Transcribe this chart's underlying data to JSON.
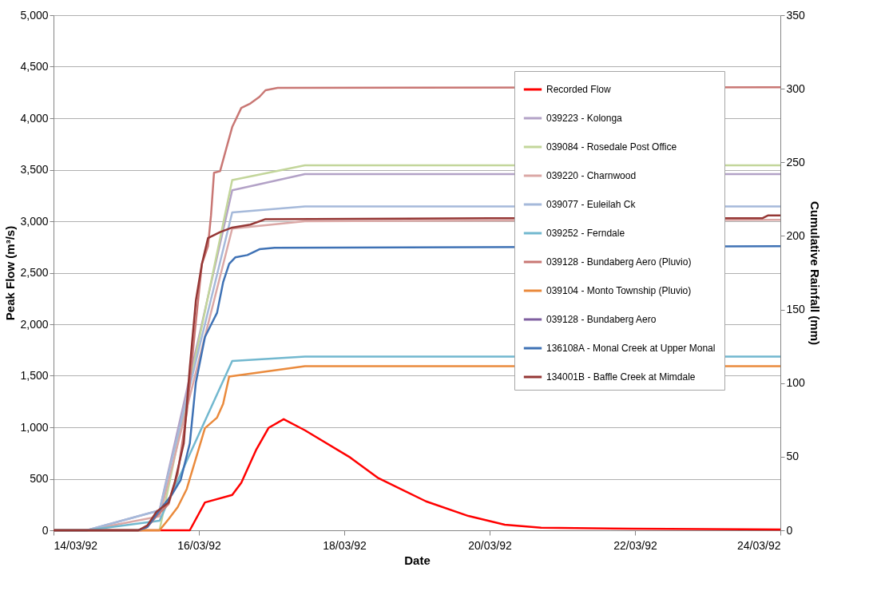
{
  "chart_data": {
    "type": "line",
    "xlabel": "Date",
    "ylabel": "Peak Flow (m³/s)",
    "y2label": "Cumulative Rainfall (mm)",
    "xlim": [
      "1992-03-14T00:00",
      "1992-03-24T00:00"
    ],
    "xticks": [
      {
        "value": "1992-03-14T00:00",
        "label": "14/03/92"
      },
      {
        "value": "1992-03-16T00:00",
        "label": "16/03/92"
      },
      {
        "value": "1992-03-18T00:00",
        "label": "18/03/92"
      },
      {
        "value": "1992-03-20T00:00",
        "label": "20/03/92"
      },
      {
        "value": "1992-03-22T00:00",
        "label": "22/03/92"
      },
      {
        "value": "1992-03-24T00:00",
        "label": "24/03/92"
      }
    ],
    "ylim": [
      0,
      5000
    ],
    "yticks": [
      {
        "value": 0,
        "label": "0"
      },
      {
        "value": 500,
        "label": "500"
      },
      {
        "value": 1000,
        "label": "1,000"
      },
      {
        "value": 1500,
        "label": "1,500"
      },
      {
        "value": 2000,
        "label": "2,000"
      },
      {
        "value": 2500,
        "label": "2,500"
      },
      {
        "value": 3000,
        "label": "3,000"
      },
      {
        "value": 3500,
        "label": "3,500"
      },
      {
        "value": 4000,
        "label": "4,000"
      },
      {
        "value": 4500,
        "label": "4,500"
      },
      {
        "value": 5000,
        "label": "5,000"
      }
    ],
    "y2lim": [
      0,
      350
    ],
    "y2ticks": [
      0,
      50,
      100,
      150,
      200,
      250,
      300,
      350
    ],
    "grid": "y",
    "legend": "top right",
    "marker": "none",
    "line_style": "solid",
    "series": [
      {
        "name": "Recorded Flow",
        "color": "#ff0000",
        "axis": "y",
        "x": [
          "1992-03-14T00:00",
          "1992-03-15T12:00",
          "1992-03-15T21:00",
          "1992-03-16T02:00",
          "1992-03-16T11:00",
          "1992-03-16T14:00",
          "1992-03-16T19:00",
          "1992-03-16T23:00",
          "1992-03-17T04:00",
          "1992-03-17T11:00",
          "1992-03-18T02:00",
          "1992-03-18T11:00",
          "1992-03-19T03:00",
          "1992-03-19T17:00",
          "1992-03-20T05:00",
          "1992-03-20T17:00",
          "1992-03-21T23:00",
          "1992-03-24T00:00"
        ],
        "values": [
          0,
          0,
          0,
          270,
          343,
          462,
          786,
          994,
          1079,
          971,
          706,
          511,
          281,
          139,
          54,
          26,
          15,
          8
        ]
      },
      {
        "name": "039223 - Kolonga",
        "color": "#b3a2c7",
        "axis": "y2",
        "x": [
          "1992-03-14T00:00",
          "1992-03-14T11:00",
          "1992-03-15T11:00",
          "1992-03-16T11:00",
          "1992-03-17T11:00",
          "1992-03-24T00:00"
        ],
        "values": [
          0,
          0,
          13.6,
          231,
          242,
          242
        ]
      },
      {
        "name": "039084 - Rosedale Post Office",
        "color": "#c3d69b",
        "axis": "y2",
        "x": [
          "1992-03-14T00:00",
          "1992-03-14T11:00",
          "1992-03-15T11:00",
          "1992-03-16T11:00",
          "1992-03-17T11:00",
          "1992-03-24T00:00"
        ],
        "values": [
          0,
          0,
          0,
          238,
          248,
          248
        ]
      },
      {
        "name": "039220 - Charnwood",
        "color": "#dba8a6",
        "axis": "y2",
        "x": [
          "1992-03-14T00:00",
          "1992-03-14T11:00",
          "1992-03-15T11:00",
          "1992-03-16T11:00",
          "1992-03-17T11:00",
          "1992-03-24T00:00"
        ],
        "values": [
          0,
          0,
          9.5,
          205,
          210,
          211
        ]
      },
      {
        "name": "039077 - Euleilah Ck",
        "color": "#a5b9da",
        "axis": "y2",
        "x": [
          "1992-03-14T00:00",
          "1992-03-14T11:00",
          "1992-03-15T11:00",
          "1992-03-16T11:00",
          "1992-03-17T11:00",
          "1992-03-24T00:00"
        ],
        "values": [
          0,
          0,
          13.6,
          216,
          220,
          220
        ]
      },
      {
        "name": "039252 - Ferndale",
        "color": "#72b8cf",
        "axis": "y2",
        "x": [
          "1992-03-14T00:00",
          "1992-03-14T11:00",
          "1992-03-15T11:00",
          "1992-03-16T11:00",
          "1992-03-17T11:00",
          "1992-03-24T00:00"
        ],
        "values": [
          0,
          0,
          6.5,
          115,
          118,
          118
        ]
      },
      {
        "name": "039128 - Bundaberg Aero (Pluvio)",
        "color": "#c97774",
        "axis": "y2",
        "x": [
          "1992-03-14T00:00",
          "1992-03-15T05:00",
          "1992-03-15T07:00",
          "1992-03-15T10:00",
          "1992-03-15T14:00",
          "1992-03-15T17:00",
          "1992-03-15T20:00",
          "1992-03-15T23:00",
          "1992-03-16T01:00",
          "1992-03-16T03:00",
          "1992-03-16T04:00",
          "1992-03-16T05:00",
          "1992-03-16T07:00",
          "1992-03-16T09:00",
          "1992-03-16T11:00",
          "1992-03-16T14:00",
          "1992-03-16T17:00",
          "1992-03-16T20:00",
          "1992-03-16T22:00",
          "1992-03-17T02:00",
          "1992-03-24T00:00"
        ],
        "values": [
          0,
          0,
          2.3,
          9.5,
          17.8,
          38.5,
          79.8,
          141.6,
          181,
          193,
          214,
          243,
          244,
          259,
          274,
          287,
          290,
          294.5,
          299,
          300.6,
          301
        ]
      },
      {
        "name": "039104 - Monto Township (Pluvio)",
        "color": "#ea8a3c",
        "axis": "y2",
        "x": [
          "1992-03-14T00:00",
          "1992-03-15T11:00",
          "1992-03-15T14:00",
          "1992-03-15T17:00",
          "1992-03-15T20:00",
          "1992-03-15T23:00",
          "1992-03-16T02:00",
          "1992-03-16T06:00",
          "1992-03-16T08:00",
          "1992-03-16T10:00",
          "1992-03-17T11:00",
          "1992-03-24T00:00"
        ],
        "values": [
          0,
          0,
          7.6,
          15.7,
          28.1,
          48.8,
          69.4,
          76.6,
          85.9,
          104.5,
          111.5,
          111.5
        ]
      },
      {
        "name": "039128 - Bundaberg Aero",
        "color": "#7f5fa0"
      },
      {
        "name": "136108A - Monal Creek at Upper Monal",
        "color": "#3f72b5",
        "axis": "y2",
        "x": [
          "1992-03-14T00:00",
          "1992-03-15T04:00",
          "1992-03-15T07:00",
          "1992-03-15T11:00",
          "1992-03-15T15:00",
          "1992-03-15T18:00",
          "1992-03-15T21:00",
          "1992-03-15T23:00",
          "1992-03-16T02:00",
          "1992-03-16T04:00",
          "1992-03-16T06:00",
          "1992-03-16T08:00",
          "1992-03-16T10:00",
          "1992-03-16T12:00",
          "1992-03-16T16:00",
          "1992-03-16T20:00",
          "1992-03-17T01:00",
          "1992-03-24T00:00"
        ],
        "values": [
          0,
          0,
          2.3,
          13.6,
          24,
          34.3,
          59,
          100.4,
          131.3,
          139.6,
          147.8,
          168.5,
          181,
          185.4,
          187,
          191,
          192,
          193
        ]
      },
      {
        "name": "134001B - Baffle Creek at Mimdale",
        "color": "#953735",
        "axis": "y2",
        "x": [
          "1992-03-14T00:00",
          "1992-03-15T04:00",
          "1992-03-15T07:00",
          "1992-03-15T10:00",
          "1992-03-15T14:00",
          "1992-03-15T16:00",
          "1992-03-15T19:00",
          "1992-03-15T21:00",
          "1992-03-15T23:00",
          "1992-03-16T01:00",
          "1992-03-16T03:00",
          "1992-03-16T07:00",
          "1992-03-16T11:00",
          "1992-03-16T17:00",
          "1992-03-16T22:00",
          "1992-03-20T00:00",
          "1992-03-23T18:00",
          "1992-03-23T20:00",
          "1992-03-24T00:00"
        ],
        "values": [
          0,
          0,
          3.3,
          12.6,
          18.9,
          32.3,
          59,
          110.7,
          156,
          181,
          198.5,
          202.6,
          205.7,
          207.7,
          211.4,
          212,
          212,
          214,
          214
        ]
      }
    ]
  }
}
